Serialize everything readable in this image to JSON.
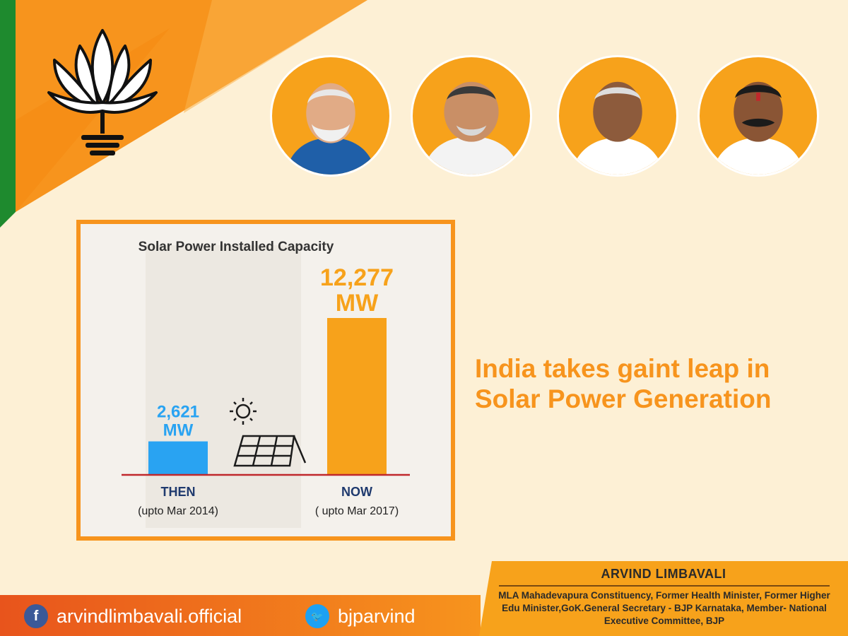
{
  "colors": {
    "background": "#fdf0d5",
    "accent_orange": "#f7941d",
    "accent_saffron": "#f7a21b",
    "green": "#1e8a2e",
    "then_bar": "#29a3f2",
    "now_bar": "#f7a21b",
    "baseline": "#c0282c",
    "label_navy": "#1f3a6e"
  },
  "logo": {
    "icon": "lotus-icon"
  },
  "portraits": [
    {
      "icon": "portrait-icon"
    },
    {
      "icon": "portrait-icon"
    },
    {
      "icon": "portrait-icon"
    },
    {
      "icon": "portrait-icon"
    }
  ],
  "headline": {
    "line1": "India takes gaint leap in",
    "line2": "Solar Power Generation"
  },
  "chart_data": {
    "type": "bar",
    "title": "Solar Power Installed Capacity",
    "unit": "MW",
    "categories": [
      "THEN",
      "NOW"
    ],
    "category_notes": [
      "(upto Mar 2014)",
      "( upto Mar 2017)"
    ],
    "values": [
      2621,
      12277
    ],
    "value_labels": [
      "2,621",
      "12,277"
    ],
    "series_colors": [
      "#29a3f2",
      "#f7a21b"
    ],
    "grid": false,
    "legend": "none",
    "decorations": [
      "sun-icon",
      "solar-panel-icon"
    ]
  },
  "footer": {
    "facebook": {
      "icon": "facebook-icon",
      "glyph": "f",
      "handle": "arvindlimbavali.official"
    },
    "twitter": {
      "icon": "twitter-icon",
      "glyph": "🐦",
      "handle": "bjparvind"
    },
    "profile": {
      "name": "ARVIND LIMBAVALI",
      "description": "MLA Mahadevapura Constituency, Former Health Minister, Former Higher Edu Minister,GoK.General Secretary - BJP Karnataka, Member- National Executive Committee, BJP"
    }
  }
}
